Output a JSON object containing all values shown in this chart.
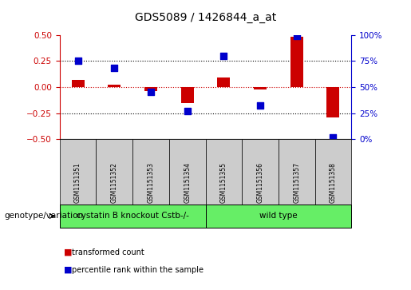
{
  "title": "GDS5089 / 1426844_a_at",
  "samples": [
    "GSM1151351",
    "GSM1151352",
    "GSM1151353",
    "GSM1151354",
    "GSM1151355",
    "GSM1151356",
    "GSM1151357",
    "GSM1151358"
  ],
  "transformed_count": [
    0.07,
    0.025,
    -0.04,
    -0.15,
    0.09,
    -0.025,
    0.48,
    -0.29
  ],
  "percentile_rank": [
    75,
    68,
    45,
    27,
    80,
    32,
    99,
    2
  ],
  "bar_color": "#cc0000",
  "dot_color": "#0000cc",
  "ylim_left": [
    -0.5,
    0.5
  ],
  "ylim_right": [
    0,
    100
  ],
  "yticks_left": [
    -0.5,
    -0.25,
    0.0,
    0.25,
    0.5
  ],
  "yticks_right": [
    0,
    25,
    50,
    75,
    100
  ],
  "groups": [
    {
      "label": "cystatin B knockout Cstb-/-",
      "start": 0,
      "end": 3,
      "color": "#66ee66"
    },
    {
      "label": "wild type",
      "start": 4,
      "end": 7,
      "color": "#66ee66"
    }
  ],
  "genotype_label": "genotype/variation",
  "legend_items": [
    {
      "color": "#cc0000",
      "label": "transformed count"
    },
    {
      "color": "#0000cc",
      "label": "percentile rank within the sample"
    }
  ],
  "background_color": "#ffffff",
  "plot_bg_color": "#ffffff",
  "sample_bg_color": "#cccccc",
  "bar_width": 0.35,
  "dot_size": 40,
  "title_fontsize": 10,
  "tick_fontsize": 7.5,
  "sample_fontsize": 5.5,
  "geno_fontsize": 7.5,
  "legend_fontsize": 7
}
